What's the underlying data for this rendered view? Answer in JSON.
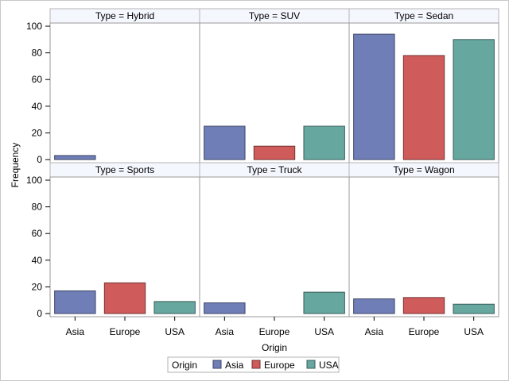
{
  "chart_data": {
    "type": "bar",
    "layout": "panel-grid-2x3",
    "xlabel": "Origin",
    "ylabel": "Frequency",
    "ylim": [
      0,
      100
    ],
    "yticks": [
      0,
      20,
      40,
      60,
      80,
      100
    ],
    "categories": [
      "Asia",
      "Europe",
      "USA"
    ],
    "colors": {
      "Asia": "#6f7eb7",
      "Europe": "#d05b5b",
      "USA": "#66a8a0"
    },
    "legend": {
      "title": "Origin",
      "placement": "bottom",
      "entries": [
        "Asia",
        "Europe",
        "USA"
      ]
    },
    "panels": [
      {
        "title": "Type = Hybrid",
        "values": [
          3,
          0,
          0
        ]
      },
      {
        "title": "Type = SUV",
        "values": [
          25,
          10,
          25
        ]
      },
      {
        "title": "Type = Sedan",
        "values": [
          94,
          78,
          90
        ]
      },
      {
        "title": "Type = Sports",
        "values": [
          17,
          23,
          9
        ]
      },
      {
        "title": "Type = Truck",
        "values": [
          8,
          0,
          16
        ]
      },
      {
        "title": "Type = Wagon",
        "values": [
          11,
          12,
          7
        ]
      }
    ]
  }
}
